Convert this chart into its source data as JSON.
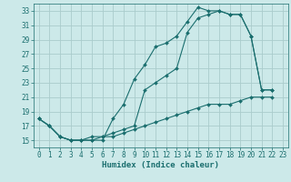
{
  "bg_color": "#cce9e9",
  "grid_color": "#aacccc",
  "line_color": "#1a6e6e",
  "xlabel": "Humidex (Indice chaleur)",
  "xlim": [
    -0.5,
    23.5
  ],
  "ylim": [
    14.0,
    34.0
  ],
  "yticks": [
    15,
    17,
    19,
    21,
    23,
    25,
    27,
    29,
    31,
    33
  ],
  "xticks": [
    0,
    1,
    2,
    3,
    4,
    5,
    6,
    7,
    8,
    9,
    10,
    11,
    12,
    13,
    14,
    15,
    16,
    17,
    18,
    19,
    20,
    21,
    22,
    23
  ],
  "curve1_x": [
    0,
    1,
    2,
    3,
    4,
    5,
    6,
    7,
    8,
    9,
    10,
    11,
    12,
    13,
    14,
    15,
    16,
    17,
    18,
    19,
    20,
    21,
    22
  ],
  "curve1_y": [
    18,
    17,
    15.5,
    15,
    15,
    15,
    15,
    18,
    20,
    23.5,
    25.5,
    28,
    28.5,
    29.5,
    31.5,
    33.5,
    33.0,
    33.0,
    32.5,
    32.5,
    29.5,
    22,
    22
  ],
  "curve2_x": [
    0,
    1,
    2,
    3,
    4,
    5,
    6,
    7,
    8,
    9,
    10,
    11,
    12,
    13,
    14,
    15,
    16,
    17,
    18,
    19,
    20,
    21,
    22
  ],
  "curve2_y": [
    18,
    17,
    15.5,
    15,
    15,
    15,
    15.5,
    16,
    16.5,
    17,
    22,
    23,
    24,
    25,
    30,
    32,
    32.5,
    33,
    32.5,
    32.5,
    29.5,
    22,
    22
  ],
  "curve3_x": [
    0,
    1,
    2,
    3,
    4,
    5,
    6,
    7,
    8,
    9,
    10,
    11,
    12,
    13,
    14,
    15,
    16,
    17,
    18,
    19,
    20,
    21,
    22
  ],
  "curve3_y": [
    18,
    17,
    15.5,
    15,
    15,
    15.5,
    15.5,
    15.5,
    16,
    16.5,
    17,
    17.5,
    18,
    18.5,
    19,
    19.5,
    20,
    20,
    20,
    20.5,
    21,
    21,
    21
  ],
  "tick_fontsize": 5.5,
  "xlabel_fontsize": 6.5,
  "marker_size": 2.0,
  "line_width": 0.8
}
